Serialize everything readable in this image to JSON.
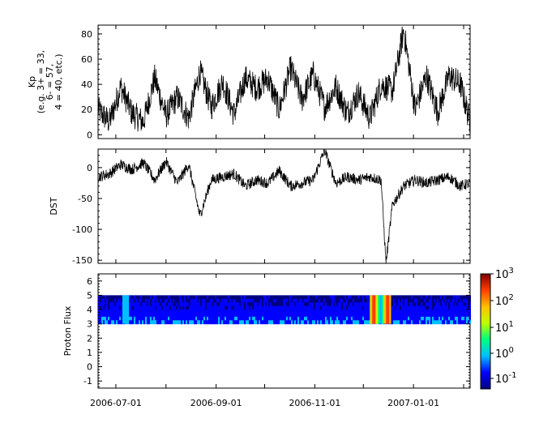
{
  "chart_data": [
    {
      "type": "line",
      "ylabel_lines": [
        "Kp",
        "(e.g. 3+ = 33,",
        "6- = 57,",
        "4 = 40, etc.)"
      ],
      "ylim": [
        -3,
        87
      ],
      "yticks": [
        0,
        20,
        40,
        60,
        80
      ],
      "x_range": [
        "2006-06-20",
        "2007-02-05"
      ],
      "series": [
        {
          "x": [
            "2006-06-20",
            "2006-06-27",
            "2006-07-04",
            "2006-07-11",
            "2006-07-18",
            "2006-07-25",
            "2006-08-01",
            "2006-08-08",
            "2006-08-15",
            "2006-08-22",
            "2006-08-29",
            "2006-09-05",
            "2006-09-12",
            "2006-09-19",
            "2006-09-26",
            "2006-10-03",
            "2006-10-10",
            "2006-10-17",
            "2006-10-24",
            "2006-10-31",
            "2006-11-07",
            "2006-11-14",
            "2006-11-21",
            "2006-11-28",
            "2006-12-05",
            "2006-12-12",
            "2006-12-19",
            "2006-12-26",
            "2007-01-02",
            "2007-01-09",
            "2007-01-16",
            "2007-01-23",
            "2007-01-30",
            "2007-02-05"
          ],
          "values": [
            20,
            10,
            38,
            17,
            10,
            45,
            15,
            30,
            13,
            50,
            22,
            42,
            16,
            45,
            37,
            45,
            20,
            53,
            28,
            48,
            22,
            38,
            17,
            33,
            13,
            40,
            35,
            83,
            20,
            47,
            18,
            47,
            40,
            10
          ]
        }
      ]
    },
    {
      "type": "line",
      "ylabel": "DST",
      "ylim": [
        -155,
        30
      ],
      "yticks": [
        0,
        -50,
        -100,
        -150
      ],
      "x_range": [
        "2006-06-20",
        "2007-02-05"
      ],
      "series": [
        {
          "x": [
            "2006-06-20",
            "2006-06-27",
            "2006-07-04",
            "2006-07-11",
            "2006-07-18",
            "2006-07-25",
            "2006-08-01",
            "2006-08-08",
            "2006-08-15",
            "2006-08-22",
            "2006-08-29",
            "2006-09-05",
            "2006-09-12",
            "2006-09-19",
            "2006-09-26",
            "2006-10-03",
            "2006-10-10",
            "2006-10-17",
            "2006-10-24",
            "2006-10-31",
            "2006-11-07",
            "2006-11-14",
            "2006-11-21",
            "2006-11-28",
            "2006-12-05",
            "2006-12-12",
            "2006-12-15",
            "2006-12-19",
            "2006-12-26",
            "2007-01-02",
            "2007-01-09",
            "2007-01-16",
            "2007-01-23",
            "2007-01-30",
            "2007-02-05"
          ],
          "values": [
            -15,
            -10,
            5,
            -3,
            8,
            -20,
            10,
            -25,
            5,
            -78,
            -20,
            -15,
            -10,
            -30,
            -20,
            -25,
            -5,
            -30,
            -25,
            -20,
            28,
            -25,
            -15,
            -20,
            -15,
            -20,
            -155,
            -60,
            -30,
            -20,
            -25,
            -20,
            -15,
            -30,
            -25
          ]
        }
      ]
    },
    {
      "type": "heatmap",
      "ylabel": "Proton Flux",
      "ylim": [
        -1.5,
        6.5
      ],
      "yticks": [
        -1,
        0,
        1,
        2,
        3,
        4,
        5,
        6
      ],
      "x_range": [
        "2006-06-20",
        "2007-02-05"
      ],
      "bands": [
        3,
        5
      ],
      "events": [
        {
          "start": "2006-07-05",
          "end": "2006-07-09",
          "level": 0.7
        },
        {
          "start": "2006-12-05",
          "end": "2006-12-18",
          "level": 3
        }
      ],
      "colorbar": {
        "ticks": [
          "10^-1",
          "10^0",
          "10^1",
          "10^2",
          "10^3"
        ],
        "colors": [
          "#00007f",
          "#0000ff",
          "#00bfff",
          "#00ff7f",
          "#bfff00",
          "#ffbf00",
          "#ff3f00",
          "#7f0000"
        ]
      }
    }
  ],
  "x_tick_labels": [
    "2006-07-01",
    "2006-09-01",
    "2006-11-01",
    "2007-01-01"
  ]
}
